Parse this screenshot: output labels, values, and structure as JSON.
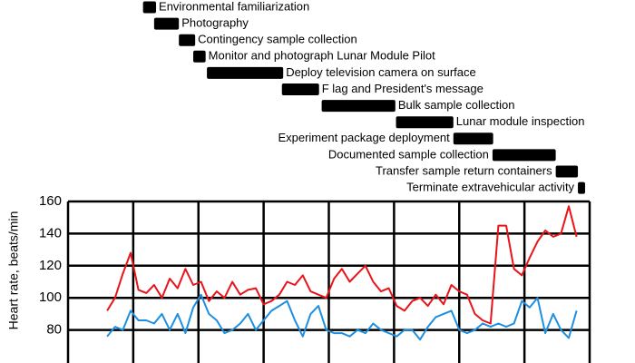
{
  "chart_data": {
    "type": "timeline",
    "tasks": [
      {
        "name": "Environmental familiarization",
        "start": 1.15,
        "end": 1.35,
        "label_side": "right"
      },
      {
        "name": "Photography",
        "start": 1.32,
        "end": 1.7,
        "label_side": "right"
      },
      {
        "name": "Contingency sample collection",
        "start": 1.7,
        "end": 1.95,
        "label_side": "right"
      },
      {
        "name": "Monitor and photograph Lunar Module Pilot",
        "start": 1.92,
        "end": 2.11,
        "label_side": "right"
      },
      {
        "name": "Deploy television camera on surface",
        "start": 2.13,
        "end": 3.3,
        "label_side": "right"
      },
      {
        "name": "F lag and President's message",
        "start": 3.28,
        "end": 3.85,
        "label_side": "right"
      },
      {
        "name": "Bulk sample collection",
        "start": 3.89,
        "end": 5.02,
        "label_side": "right"
      },
      {
        "name": "Lunar module inspection",
        "start": 5.03,
        "end": 5.91,
        "label_side": "right"
      },
      {
        "name": "Experiment package deployment",
        "start": 5.91,
        "end": 6.52,
        "label_side": "left"
      },
      {
        "name": "Documented sample collection",
        "start": 6.51,
        "end": 7.48,
        "label_side": "left"
      },
      {
        "name": "Transfer sample return containers",
        "start": 7.48,
        "end": 7.82,
        "label_side": "left"
      },
      {
        "name": "Terminate extravehicular activity",
        "start": 7.82,
        "end": 7.93,
        "label_side": "left"
      }
    ],
    "ylabel": "Heart rate, beats/min",
    "xlim": [
      0,
      8
    ],
    "ylim": [
      60,
      160
    ],
    "yticks": [
      80,
      100,
      120,
      140,
      160
    ],
    "grid": true,
    "x": [
      0.6,
      0.72,
      0.84,
      0.96,
      1.08,
      1.2,
      1.32,
      1.44,
      1.56,
      1.68,
      1.8,
      1.92,
      2.04,
      2.16,
      2.28,
      2.4,
      2.52,
      2.64,
      2.76,
      2.88,
      3,
      3.12,
      3.24,
      3.36,
      3.48,
      3.6,
      3.72,
      3.84,
      3.96,
      4.08,
      4.2,
      4.32,
      4.44,
      4.56,
      4.68,
      4.8,
      4.92,
      5.04,
      5.16,
      5.28,
      5.4,
      5.52,
      5.64,
      5.76,
      5.88,
      6,
      6.12,
      6.24,
      6.36,
      6.48,
      6.6,
      6.72,
      6.84,
      6.96,
      7.08,
      7.2,
      7.32,
      7.44,
      7.56,
      7.68,
      7.8
    ],
    "series": [
      {
        "color": "#e8141a",
        "values": [
          92,
          100,
          115,
          128,
          105,
          103,
          108,
          100,
          112,
          106,
          118,
          108,
          110,
          98,
          104,
          100,
          110,
          102,
          105,
          106,
          96,
          98,
          102,
          110,
          108,
          114,
          104,
          102,
          100,
          112,
          118,
          110,
          115,
          120,
          110,
          104,
          106,
          95,
          92,
          98,
          100,
          95,
          102,
          96,
          108,
          104,
          102,
          90,
          86,
          84,
          145,
          145,
          118,
          114,
          125,
          135,
          142,
          138,
          140,
          157,
          138
        ]
      },
      {
        "color": "#1e8fe0",
        "values": [
          76,
          82,
          80,
          92,
          86,
          86,
          84,
          90,
          80,
          90,
          78,
          94,
          102,
          90,
          86,
          78,
          80,
          84,
          90,
          80,
          86,
          92,
          95,
          98,
          86,
          76,
          90,
          95,
          80,
          78,
          78,
          76,
          80,
          78,
          84,
          80,
          78,
          76,
          80,
          80,
          74,
          82,
          88,
          90,
          92,
          80,
          78,
          80,
          84,
          82,
          84,
          82,
          84,
          98,
          94,
          100,
          78,
          90,
          80,
          75,
          92
        ]
      }
    ]
  }
}
